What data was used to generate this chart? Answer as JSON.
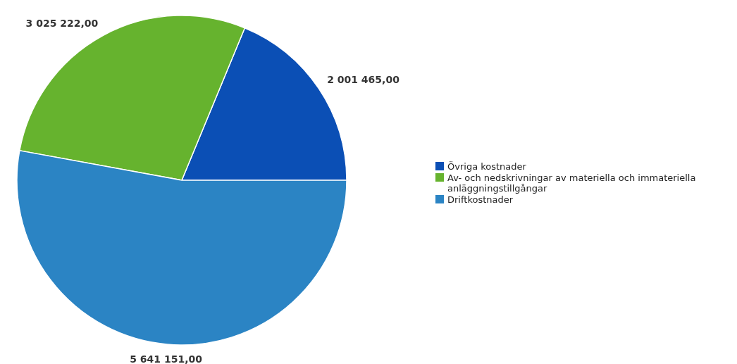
{
  "chart_data": {
    "type": "pie",
    "categories": [
      "Övriga kostnader",
      "Av- och nedskrivningar av materiella och immateriella anläggningstillgångar",
      "Driftkostnader"
    ],
    "values": [
      2001465,
      3025222,
      5641151
    ],
    "colors": [
      "#0b4fb5",
      "#66b32e",
      "#2b84c4"
    ],
    "value_labels": [
      "2 001 465,00",
      "3 025 222,00",
      "5 641 151,00"
    ],
    "legend": "right"
  }
}
